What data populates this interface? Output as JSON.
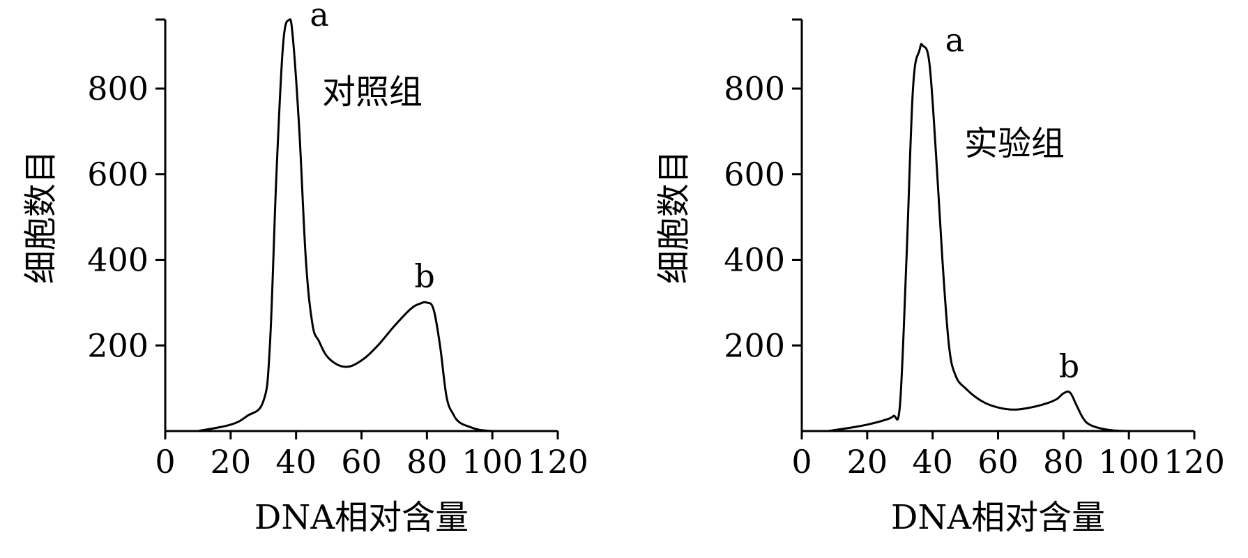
{
  "chart_data": [
    {
      "type": "line",
      "annotation": "对照组",
      "xlabel": "DNA相对含量",
      "ylabel": "细胞数目",
      "xlim": [
        0,
        120
      ],
      "ylim": [
        0,
        950
      ],
      "xticks": [
        0,
        20,
        40,
        60,
        80,
        100,
        120
      ],
      "yticks": [
        200,
        400,
        600,
        800
      ],
      "grid": false,
      "series": [
        {
          "x": [
            10,
            20,
            25,
            30,
            32,
            34,
            36,
            37.8,
            39,
            41,
            43,
            45,
            47,
            50,
            55,
            60,
            65,
            70,
            75,
            78,
            80,
            82,
            84,
            86,
            88,
            90,
            93,
            96,
            100
          ],
          "y": [
            0,
            15,
            35,
            70,
            200,
            600,
            900,
            960,
            920,
            700,
            400,
            250,
            210,
            170,
            150,
            165,
            200,
            245,
            285,
            298,
            300,
            285,
            200,
            80,
            40,
            20,
            10,
            3,
            0
          ]
        }
      ],
      "peak_labels": [
        {
          "text": "a",
          "x": 37.8,
          "y": 960
        },
        {
          "text": "b",
          "x": 80,
          "y": 300
        }
      ]
    },
    {
      "type": "line",
      "annotation": "实验组",
      "xlabel": "DNA相对含量",
      "ylabel": "细胞数目",
      "xlim": [
        0,
        120
      ],
      "ylim": [
        0,
        950
      ],
      "xticks": [
        0,
        20,
        40,
        60,
        80,
        100,
        120
      ],
      "yticks": [
        200,
        400,
        600,
        800
      ],
      "grid": false,
      "series": [
        {
          "x": [
            8,
            15,
            20,
            25,
            28,
            30,
            32,
            34,
            36,
            37,
            39,
            41,
            43,
            45,
            47,
            50,
            55,
            60,
            65,
            70,
            75,
            78,
            80,
            82,
            84,
            86,
            88,
            92,
            96,
            100
          ],
          "y": [
            0,
            8,
            15,
            25,
            35,
            60,
            400,
            800,
            890,
            900,
            860,
            650,
            400,
            200,
            130,
            100,
            70,
            55,
            50,
            55,
            65,
            75,
            88,
            90,
            60,
            30,
            15,
            5,
            1,
            0
          ]
        }
      ],
      "peak_labels": [
        {
          "text": "a",
          "x": 37,
          "y": 900
        },
        {
          "text": "b",
          "x": 82,
          "y": 90
        }
      ]
    }
  ]
}
